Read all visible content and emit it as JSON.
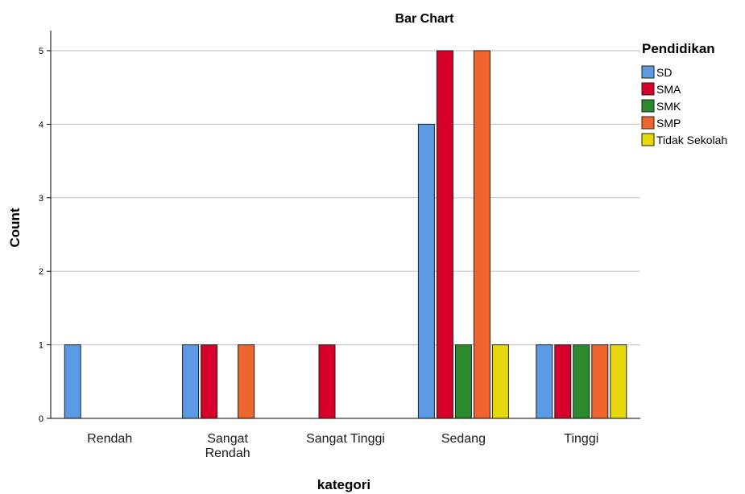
{
  "chart_data": {
    "type": "bar",
    "title": "Bar Chart",
    "xlabel": "kategori",
    "ylabel": "Count",
    "categories": [
      "Rendah",
      "Sangat Rendah",
      "Sangat Tinggi",
      "Sedang",
      "Tinggi"
    ],
    "category_lines": [
      [
        "Rendah"
      ],
      [
        "Sangat",
        "Rendah"
      ],
      [
        "Sangat Tinggi"
      ],
      [
        "Sedang"
      ],
      [
        "Tinggi"
      ]
    ],
    "yticks": [
      0,
      1,
      2,
      3,
      4,
      5
    ],
    "ylim": [
      0,
      5.25
    ],
    "grid": true,
    "legend": {
      "title": "Pendidikan",
      "placement": "right"
    },
    "series": [
      {
        "name": "SD",
        "color": "#5b9be6",
        "values": [
          1,
          1,
          0,
          4,
          1
        ]
      },
      {
        "name": "SMA",
        "color": "#d7002a",
        "values": [
          0,
          1,
          1,
          5,
          1
        ]
      },
      {
        "name": "SMK",
        "color": "#2b8a2e",
        "values": [
          0,
          0,
          0,
          1,
          1
        ]
      },
      {
        "name": "SMP",
        "color": "#f0652d",
        "values": [
          0,
          1,
          0,
          5,
          1
        ]
      },
      {
        "name": "Tidak Sekolah",
        "color": "#e6d80a",
        "values": [
          0,
          0,
          0,
          1,
          1
        ]
      }
    ]
  }
}
